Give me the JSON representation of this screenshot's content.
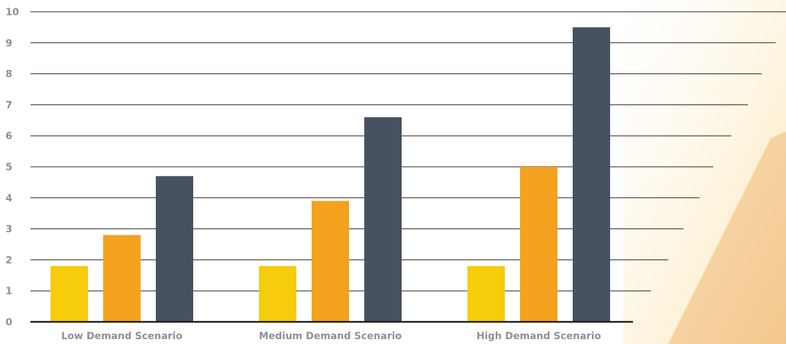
{
  "chart_data": {
    "type": "bar",
    "categories": [
      "Low Demand Scenario",
      "Medium Demand Scenario",
      "High Demand Scenario"
    ],
    "series": [
      {
        "values": [
          1.8,
          1.8,
          1.8
        ],
        "color": "#F6CC0B"
      },
      {
        "values": [
          2.8,
          3.9,
          5.0
        ],
        "color": "#F3A11F"
      },
      {
        "values": [
          4.7,
          6.6,
          9.5
        ],
        "color": "#46525F"
      }
    ],
    "ylim": [
      0,
      10
    ],
    "yticks": [
      "0",
      "1",
      "2",
      "3",
      "4",
      "5",
      "6",
      "7",
      "8",
      "9",
      "10"
    ],
    "grid": true,
    "legend": "none",
    "xlabel": "",
    "ylabel": "",
    "title": ""
  },
  "colors": {
    "tick_text": "#8F8F96",
    "gridline": "#1E1E1E",
    "axis": "#1E1E1E",
    "background_accent": "#F6CC86"
  }
}
